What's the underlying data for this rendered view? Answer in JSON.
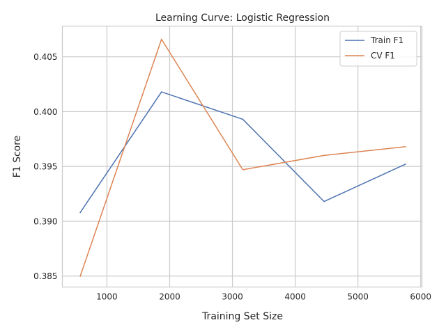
{
  "chart_data": {
    "type": "line",
    "title": "Learning Curve: Logistic Regression",
    "xlabel": "Training Set Size",
    "ylabel": "F1 Score",
    "xlim": [
      290,
      6020
    ],
    "ylim": [
      0.384,
      0.4078
    ],
    "xticks": [
      1000,
      2000,
      3000,
      4000,
      5000,
      6000
    ],
    "yticks": [
      0.385,
      0.39,
      0.395,
      0.4,
      0.405
    ],
    "xtick_labels": [
      "1000",
      "2000",
      "3000",
      "4000",
      "5000",
      "6000"
    ],
    "ytick_labels": [
      "0.385",
      "0.390",
      "0.395",
      "0.400",
      "0.405"
    ],
    "grid": true,
    "legend_position": "top-right",
    "x": [
      575,
      1870,
      3165,
      4460,
      5755
    ],
    "series": [
      {
        "name": "Train F1",
        "color": "#4c72b0",
        "values": [
          0.3908,
          0.4018,
          0.3993,
          0.3918,
          0.3952
        ]
      },
      {
        "name": "CV F1",
        "color": "#dd8452",
        "values": [
          0.385,
          0.4066,
          0.3947,
          0.396,
          0.3968
        ]
      }
    ]
  }
}
